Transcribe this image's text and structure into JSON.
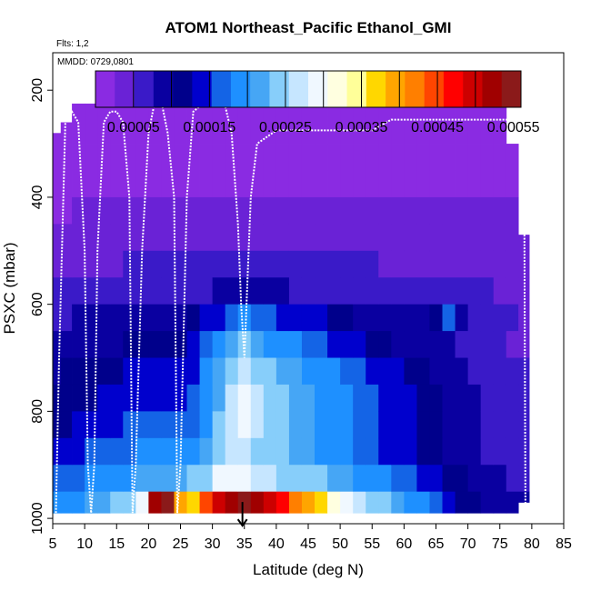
{
  "chart_data": {
    "type": "heatmap",
    "title": "ATOM1 Northeast_Pacific Ethanol_GMI",
    "flights_note": "Flts: 1,2",
    "date_note": "MMDD: 0729,0801",
    "xlabel": "Latitude (deg N)",
    "ylabel": "PSXC (mbar)",
    "xlim": [
      5,
      85
    ],
    "ylim": [
      1010,
      130
    ],
    "x_ticks": [
      "5",
      "10",
      "15",
      "20",
      "25",
      "30",
      "35",
      "40",
      "45",
      "50",
      "55",
      "60",
      "65",
      "70",
      "75",
      "80",
      "85"
    ],
    "y_ticks": [
      "200",
      "400",
      "600",
      "800",
      "1000"
    ],
    "colorbar": {
      "range": [
        0.0,
        0.00056
      ],
      "tick_labels": [
        "0.00005",
        "0.00015",
        "0.00025",
        "0.00035",
        "0.00045",
        "0.00055"
      ],
      "colors": [
        "#8a2be2",
        "#6a22d6",
        "#3a1ac8",
        "#0a00a0",
        "#00008b",
        "#0000cd",
        "#1464e6",
        "#1e90ff",
        "#46a6f5",
        "#87cefa",
        "#c6e6ff",
        "#f0f8ff",
        "#ffffe0",
        "#ffff99",
        "#ffd700",
        "#ffa500",
        "#ff7f00",
        "#ff4500",
        "#ff0000",
        "#cd0000",
        "#a00000",
        "#8b1a1a"
      ]
    },
    "grid_latitudes": [
      5.5,
      7,
      9,
      11,
      13,
      15,
      17,
      19,
      21,
      23,
      25,
      27,
      29,
      31,
      33,
      35,
      37,
      39,
      41,
      43,
      45,
      47,
      49,
      51,
      53,
      55,
      57,
      59,
      61,
      63,
      65,
      67,
      69,
      71,
      73,
      75,
      77,
      78.8
    ],
    "grid_levels": [
      225,
      275,
      325,
      375,
      425,
      475,
      525,
      575,
      625,
      675,
      725,
      775,
      825,
      875,
      925,
      975
    ],
    "grid_top": [
      280,
      260,
      225,
      225,
      225,
      225,
      225,
      225,
      225,
      225,
      225,
      180,
      180,
      180,
      180,
      225,
      225,
      225,
      225,
      225,
      225,
      225,
      225,
      225,
      225,
      225,
      225,
      225,
      225,
      225,
      225,
      225,
      225,
      225,
      225,
      225,
      300,
      470
    ],
    "grid_bottom": [
      990,
      990,
      990,
      990,
      990,
      990,
      990,
      990,
      990,
      990,
      990,
      990,
      990,
      990,
      990,
      990,
      990,
      990,
      990,
      990,
      990,
      990,
      990,
      990,
      990,
      990,
      990,
      990,
      990,
      990,
      990,
      990,
      990,
      990,
      990,
      990,
      990,
      970
    ],
    "profile_matrix": [
      [
        8e-06,
        8e-06,
        8e-06,
        1e-05,
        2e-05,
        3e-05,
        4e-05,
        6e-05,
        7e-05,
        8e-05,
        0.0001,
        0.00011,
        0.00012,
        0.00014,
        0.00016,
        0.00018
      ],
      [
        8e-06,
        8e-06,
        8e-06,
        1e-05,
        2.5e-05,
        3.5e-05,
        4.5e-05,
        6.5e-05,
        7.5e-05,
        8.5e-05,
        0.000105,
        0.000115,
        0.000125,
        0.000145,
        0.00017,
        0.00019
      ],
      [
        8e-06,
        8e-06,
        8e-06,
        1.2e-05,
        3e-05,
        4e-05,
        5e-05,
        7e-05,
        8e-05,
        9e-05,
        0.00011,
        0.00012,
        0.00013,
        0.00015,
        0.000175,
        0.0002
      ],
      [
        8e-06,
        8e-06,
        8e-06,
        1.2e-05,
        3e-05,
        4e-05,
        5e-05,
        7e-05,
        8e-05,
        9.5e-05,
        0.00011,
        0.000125,
        0.000135,
        0.000155,
        0.00018,
        0.00021
      ],
      [
        8e-06,
        8e-06,
        8e-06,
        1.2e-05,
        3e-05,
        4e-05,
        5e-05,
        7e-05,
        8.5e-05,
        0.0001,
        0.000115,
        0.00013,
        0.00014,
        0.00016,
        0.00019,
        0.00022
      ],
      [
        8e-06,
        8e-06,
        8e-06,
        1.2e-05,
        3e-05,
        4e-05,
        5e-05,
        7e-05,
        8.5e-05,
        0.0001,
        0.00012,
        0.000135,
        0.000145,
        0.000165,
        0.000195,
        0.00023
      ],
      [
        8e-06,
        8e-06,
        8e-06,
        1.2e-05,
        3e-05,
        4.5e-05,
        5.5e-05,
        7.5e-05,
        9e-05,
        0.00011,
        0.00013,
        0.000145,
        0.000155,
        0.000175,
        0.0002,
        0.00025
      ],
      [
        8e-06,
        8e-06,
        8e-06,
        1.2e-05,
        3e-05,
        4.5e-05,
        5.5e-05,
        7.5e-05,
        9.5e-05,
        0.00012,
        0.00014,
        0.00015,
        0.00016,
        0.00018,
        0.00021,
        0.0003
      ],
      [
        8e-06,
        8e-06,
        8e-06,
        1.2e-05,
        3e-05,
        4.5e-05,
        5.5e-05,
        7.5e-05,
        9.5e-05,
        0.00012,
        0.00014,
        0.00015,
        0.00016,
        0.00019,
        0.00022,
        0.00052
      ],
      [
        8e-06,
        8e-06,
        8e-06,
        1.2e-05,
        3e-05,
        4.5e-05,
        5.5e-05,
        7.5e-05,
        9.5e-05,
        0.00012,
        0.00014,
        0.00015,
        0.00016,
        0.00019,
        0.00022,
        0.00055
      ],
      [
        8e-06,
        8e-06,
        8e-06,
        1.2e-05,
        3e-05,
        4.5e-05,
        5.5e-05,
        7.5e-05,
        9.5e-05,
        0.000125,
        0.00014,
        0.00015,
        0.00016,
        0.00019,
        0.00022,
        0.0004
      ],
      [
        8e-06,
        8e-06,
        8e-06,
        1.2e-05,
        3e-05,
        4.5e-05,
        5.5e-05,
        7.5e-05,
        0.00011,
        0.00014,
        0.00015,
        0.00016,
        0.00017,
        0.00019,
        0.00023,
        0.00038
      ],
      [
        8e-06,
        8e-06,
        8e-06,
        1.2e-05,
        3e-05,
        4.5e-05,
        5.5e-05,
        7.5e-05,
        0.00013,
        0.00016,
        0.00018,
        0.00018,
        0.0002,
        0.00022,
        0.00025,
        0.00045
      ],
      [
        8e-06,
        8e-06,
        8e-06,
        1.2e-05,
        3e-05,
        4.5e-05,
        5.5e-05,
        8e-05,
        0.00015,
        0.00019,
        0.00021,
        0.00022,
        0.00023,
        0.00025,
        0.00028,
        0.0005
      ],
      [
        8e-06,
        8e-06,
        8e-06,
        1.2e-05,
        3e-05,
        4.5e-05,
        6e-05,
        8.5e-05,
        0.00017,
        0.00022,
        0.00025,
        0.00026,
        0.00026,
        0.00026,
        0.00028,
        0.00053
      ],
      [
        8e-06,
        8e-06,
        8e-06,
        1.2e-05,
        3e-05,
        4.5e-05,
        6e-05,
        8.5e-05,
        0.00018,
        0.00024,
        0.00027,
        0.00029,
        0.00028,
        0.00026,
        0.00028,
        0.00054
      ],
      [
        8e-06,
        8e-06,
        8e-06,
        1.2e-05,
        3e-05,
        4.5e-05,
        6e-05,
        8e-05,
        0.00017,
        0.00022,
        0.00025,
        0.00026,
        0.00026,
        0.00025,
        0.00027,
        0.00052
      ],
      [
        8e-06,
        8e-06,
        8e-06,
        1.2e-05,
        3e-05,
        4.5e-05,
        5.5e-05,
        8e-05,
        0.00016,
        0.0002,
        0.00023,
        0.00024,
        0.00024,
        0.00024,
        0.00026,
        0.00049
      ],
      [
        8e-06,
        8e-06,
        8e-06,
        1.2e-05,
        3e-05,
        4.5e-05,
        5.5e-05,
        8e-05,
        0.00015,
        0.00019,
        0.00022,
        0.00023,
        0.00023,
        0.00023,
        0.00025,
        0.00046
      ],
      [
        8e-06,
        8e-06,
        8e-06,
        1.2e-05,
        3e-05,
        4.5e-05,
        5.5e-05,
        7.5e-05,
        0.00015,
        0.00018,
        0.00021,
        0.00022,
        0.00022,
        0.00022,
        0.00024,
        0.00042
      ],
      [
        8e-06,
        8e-06,
        8e-06,
        1.2e-05,
        3e-05,
        4.5e-05,
        5.5e-05,
        7.5e-05,
        0.00014,
        0.00017,
        0.0002,
        0.00021,
        0.00021,
        0.00021,
        0.00023,
        0.00039
      ],
      [
        8e-06,
        8e-06,
        8e-06,
        1.2e-05,
        3e-05,
        4.5e-05,
        5.5e-05,
        7.5e-05,
        0.00013,
        0.00016,
        0.00019,
        0.0002,
        0.0002,
        0.0002,
        0.00023,
        0.00037
      ],
      [
        8e-06,
        8e-06,
        8e-06,
        1.2e-05,
        3e-05,
        4.5e-05,
        5.5e-05,
        7.5e-05,
        0.00012,
        0.00015,
        0.00018,
        0.00019,
        0.00019,
        0.00019,
        0.00022,
        0.00032
      ],
      [
        8e-06,
        8e-06,
        8e-06,
        1.2e-05,
        3e-05,
        4.5e-05,
        5.5e-05,
        7.5e-05,
        0.00011,
        0.00014,
        0.00017,
        0.00018,
        0.00018,
        0.00018,
        0.00021,
        0.00029
      ],
      [
        8e-06,
        8e-06,
        8e-06,
        1.2e-05,
        3e-05,
        4.5e-05,
        5.5e-05,
        7.5e-05,
        0.0001,
        0.00013,
        0.00016,
        0.00017,
        0.00017,
        0.00017,
        0.0002,
        0.00027
      ],
      [
        8e-06,
        8e-06,
        8e-06,
        1.2e-05,
        3e-05,
        4.5e-05,
        5.5e-05,
        7e-05,
        9.5e-05,
        0.00012,
        0.00015,
        0.00016,
        0.00016,
        0.00016,
        0.00019,
        0.00025
      ],
      [
        8e-06,
        8e-06,
        8e-06,
        1.2e-05,
        3e-05,
        4.5e-05,
        5e-05,
        6.5e-05,
        9e-05,
        0.00011,
        0.00014,
        0.00015,
        0.00015,
        0.00015,
        0.00018,
        0.00023
      ],
      [
        8e-06,
        8e-06,
        8e-06,
        1.2e-05,
        3e-05,
        4e-05,
        5e-05,
        6e-05,
        8.5e-05,
        0.0001,
        0.00013,
        0.00014,
        0.00014,
        0.00014,
        0.00017,
        0.00022
      ],
      [
        8e-06,
        8e-06,
        8e-06,
        1.2e-05,
        3e-05,
        4e-05,
        5e-05,
        6e-05,
        8e-05,
        9.5e-05,
        0.00012,
        0.00013,
        0.00013,
        0.00013,
        0.00016,
        0.0002
      ],
      [
        8e-06,
        8e-06,
        8e-06,
        1.2e-05,
        3e-05,
        4e-05,
        5e-05,
        6e-05,
        8e-05,
        9e-05,
        0.00011,
        0.00012,
        0.00012,
        0.00012,
        0.00015,
        0.00018
      ],
      [
        8e-06,
        8e-06,
        8e-06,
        1.2e-05,
        3e-05,
        4e-05,
        5e-05,
        6e-05,
        0.00011,
        8e-05,
        0.0001,
        0.00011,
        0.00011,
        0.00011,
        0.00013,
        0.00016
      ],
      [
        8e-06,
        8e-06,
        8e-06,
        1.2e-05,
        3e-05,
        4e-05,
        5e-05,
        6e-05,
        0.00017,
        8e-05,
        9e-05,
        0.0001,
        0.0001,
        0.0001,
        0.00012,
        0.00014
      ],
      [
        8e-06,
        8e-06,
        8e-06,
        1.2e-05,
        3e-05,
        4e-05,
        5e-05,
        6e-05,
        9e-05,
        7e-05,
        8e-05,
        9e-05,
        9e-05,
        9e-05,
        0.00011,
        0.00012
      ],
      [
        8e-06,
        8e-06,
        8e-06,
        1.2e-05,
        3e-05,
        4e-05,
        5e-05,
        6e-05,
        7e-05,
        6.5e-05,
        7.5e-05,
        8e-05,
        8e-05,
        8e-05,
        0.0001,
        0.00011
      ],
      [
        8e-06,
        8e-06,
        8e-06,
        1.2e-05,
        3e-05,
        4e-05,
        5e-05,
        5.5e-05,
        6.5e-05,
        6e-05,
        7e-05,
        7.5e-05,
        7.5e-05,
        7.5e-05,
        9e-05,
        0.0001
      ],
      [
        8e-06,
        8e-06,
        8e-06,
        1.2e-05,
        3e-05,
        4e-05,
        4.5e-05,
        5e-05,
        6e-05,
        5.5e-05,
        6.5e-05,
        7e-05,
        7e-05,
        7e-05,
        8e-05,
        9e-05
      ],
      [
        8e-06,
        8e-06,
        8e-06,
        1.2e-05,
        3e-05,
        4e-05,
        4.5e-05,
        5e-05,
        5.5e-05,
        5e-05,
        6e-05,
        6.5e-05,
        6.5e-05,
        6.5e-05,
        7.5e-05,
        8.5e-05
      ],
      [
        8e-06,
        8e-06,
        8e-06,
        1.2e-05,
        3e-05,
        3.5e-05,
        4e-05,
        4.5e-05,
        5e-05,
        5e-05,
        5.5e-05,
        6e-05,
        6e-05,
        6e-05,
        7e-05,
        8e-05
      ]
    ],
    "flight_path": {
      "lat": [
        5.5,
        6,
        7,
        8,
        9,
        10,
        10.5,
        11,
        11.5,
        12,
        13,
        14,
        15,
        16,
        17,
        17.5,
        18,
        19,
        20,
        21,
        22,
        23,
        24,
        24.5,
        25,
        26,
        27,
        28,
        30,
        32,
        33,
        34,
        34.5,
        35,
        36,
        37,
        40,
        45,
        50,
        55,
        58,
        60,
        62,
        63,
        64,
        65,
        66,
        67,
        68,
        69,
        70,
        72,
        74,
        75,
        76,
        77,
        77.5,
        78,
        78.3,
        78.6,
        78.8,
        79
      ],
      "psxc": [
        990,
        700,
        250,
        240,
        260,
        500,
        900,
        990,
        900,
        500,
        260,
        240,
        240,
        260,
        400,
        990,
        900,
        500,
        280,
        220,
        220,
        280,
        400,
        990,
        900,
        400,
        240,
        230,
        230,
        230,
        280,
        450,
        600,
        700,
        400,
        300,
        275,
        275,
        275,
        275,
        255,
        255,
        255,
        255,
        255,
        255,
        255,
        255,
        255,
        255,
        255,
        255,
        255,
        255,
        255,
        255,
        255,
        255,
        270,
        270,
        300,
        990
      ]
    },
    "marker": {
      "lat": 34.7,
      "psxc": 1000
    }
  }
}
